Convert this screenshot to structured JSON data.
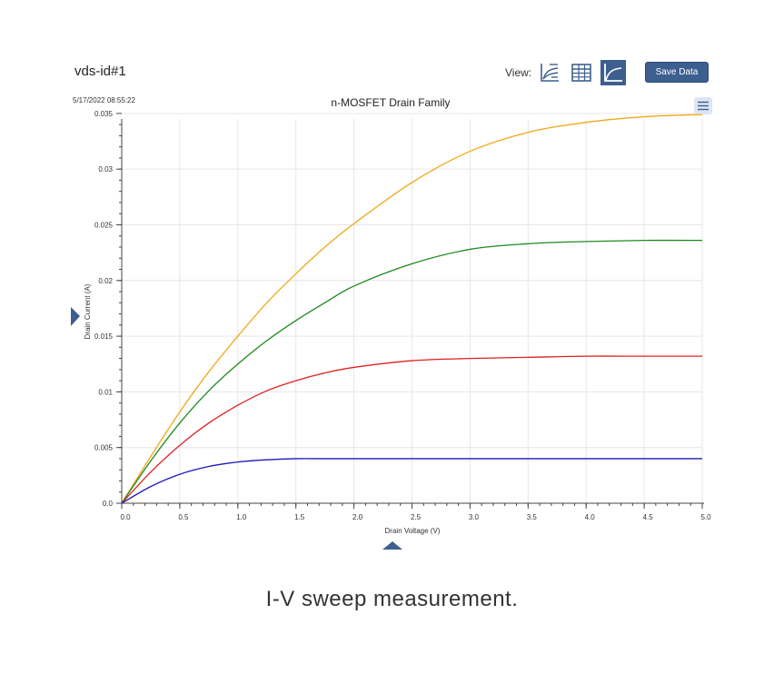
{
  "header": {
    "doc_title": "vds-id#1",
    "view_label": "View:",
    "save_label": "Save Data",
    "timestamp": "5/17/2022 08:55:22",
    "view_buttons": [
      {
        "icon": "legend-graph-icon",
        "active": false
      },
      {
        "icon": "table-icon",
        "active": false
      },
      {
        "icon": "graph-icon",
        "active": true
      }
    ],
    "accent_color": "#3d5f8f"
  },
  "caption": "I-V sweep measurement.",
  "chart_data": {
    "type": "line",
    "title": "n-MOSFET Drain Family",
    "xlabel": "Drain Voltage (V)",
    "ylabel": "Drain Current (A)",
    "xlim": [
      0,
      5
    ],
    "ylim": [
      0,
      0.0345
    ],
    "x_ticks": [
      0.0,
      0.5,
      1.0,
      1.5,
      2.0,
      2.5,
      3.0,
      3.5,
      4.0,
      4.5,
      5.0
    ],
    "x_tick_labels": [
      "0.0",
      "0.5",
      "1.0",
      "1.5",
      "2.0",
      "2.5",
      "3.0",
      "3.5",
      "4.0",
      "4.5",
      "5.0"
    ],
    "y_ticks": [
      0,
      0.005,
      0.01,
      0.015,
      0.02,
      0.025,
      0.03,
      0.035
    ],
    "y_tick_labels": [
      "0.0",
      "0.005",
      "0.01",
      "0.015",
      "0.02",
      "0.025",
      "0.03",
      "0.035"
    ],
    "grid": true,
    "x": [
      0,
      0.25,
      0.5,
      0.75,
      1.0,
      1.25,
      1.5,
      1.75,
      2.0,
      2.5,
      3.0,
      3.5,
      4.0,
      4.5,
      5.0
    ],
    "series": [
      {
        "color": "#f0a818",
        "values": [
          0,
          0.0042,
          0.0082,
          0.0118,
          0.015,
          0.018,
          0.0206,
          0.023,
          0.0251,
          0.0288,
          0.0316,
          0.0333,
          0.0342,
          0.0347,
          0.0349
        ]
      },
      {
        "color": "#1e8a1e",
        "values": [
          0,
          0.0038,
          0.0072,
          0.0101,
          0.0125,
          0.0146,
          0.0164,
          0.018,
          0.0195,
          0.0215,
          0.0228,
          0.0233,
          0.0235,
          0.0236,
          0.0236
        ]
      },
      {
        "color": "#e02020",
        "values": [
          0,
          0.0028,
          0.0052,
          0.0072,
          0.0088,
          0.0101,
          0.011,
          0.0117,
          0.0122,
          0.0128,
          0.013,
          0.0131,
          0.0132,
          0.0132,
          0.0132
        ]
      },
      {
        "color": "#1a1ab8",
        "values": [
          0,
          0.0015,
          0.0026,
          0.0033,
          0.0037,
          0.0039,
          0.004,
          0.004,
          0.004,
          0.004,
          0.004,
          0.004,
          0.004,
          0.004,
          0.004
        ]
      }
    ]
  }
}
